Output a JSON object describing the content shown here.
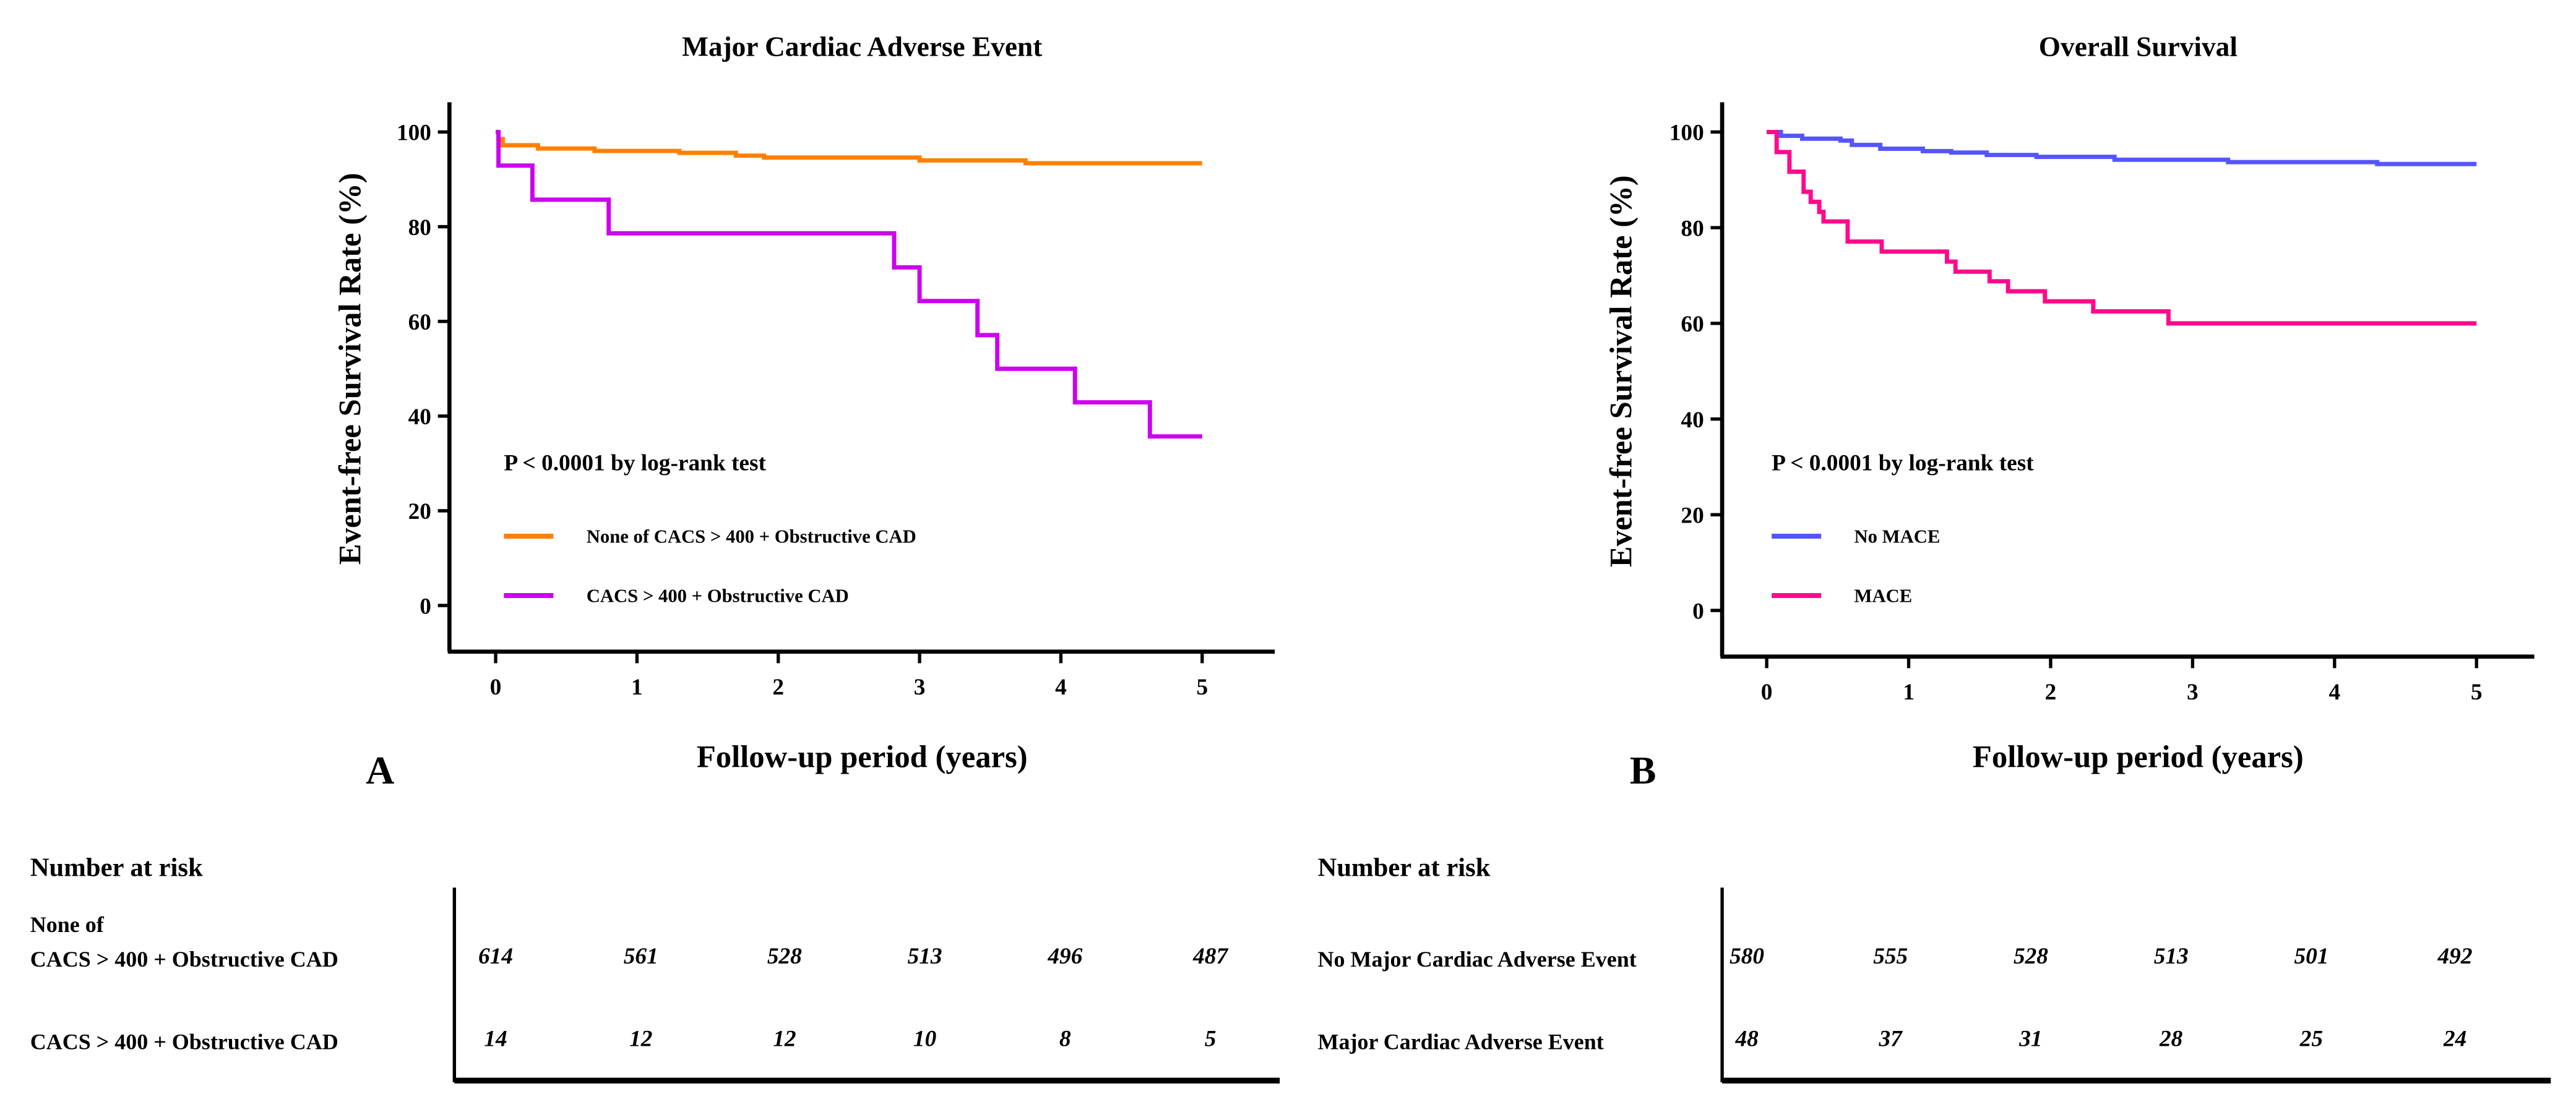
{
  "chart_data": [
    {
      "type": "line",
      "panel_label": "A",
      "title": "Major Cardiac Adverse Event",
      "xlabel": "Follow-up period (years)",
      "ylabel": "Event-free Survival Rate (%)",
      "xlim": [
        0,
        5
      ],
      "ylim": [
        -10,
        105
      ],
      "xticks": [
        "0",
        "1",
        "2",
        "3",
        "4",
        "5"
      ],
      "yticks": [
        "0",
        "20",
        "40",
        "60",
        "80",
        "100"
      ],
      "grid": false,
      "annotation": "P < 0.0001 by log-rank test",
      "legend_placement": "bottom-left",
      "series": [
        {
          "name": "None of  CACS > 400 + Obstructive CAD",
          "color": "#FF8000",
          "step": true,
          "x": [
            0,
            0.02,
            0.05,
            0.3,
            0.7,
            1.3,
            1.7,
            1.9,
            3.0,
            3.75,
            5
          ],
          "y": [
            100,
            98.5,
            97.2,
            96.5,
            96.0,
            95.6,
            95.0,
            94.6,
            94.0,
            93.4,
            93.4
          ]
        },
        {
          "name": "CACS > 400 + Obstructive CAD",
          "color": "#CC00EE",
          "step": true,
          "x": [
            0,
            0.02,
            0.26,
            0.8,
            2.82,
            3.0,
            3.41,
            3.55,
            4.1,
            4.63,
            5
          ],
          "y": [
            100,
            92.9,
            85.7,
            78.6,
            71.4,
            64.3,
            57.1,
            50.0,
            42.9,
            35.7,
            35.7
          ]
        }
      ]
    },
    {
      "type": "line",
      "panel_label": "B",
      "title": "Overall Survival",
      "xlabel": "Follow-up period (years)",
      "ylabel": "Event-free Survival Rate (%)",
      "xlim": [
        0,
        5
      ],
      "ylim": [
        -10,
        105
      ],
      "xticks": [
        "0",
        "1",
        "2",
        "3",
        "4",
        "5"
      ],
      "yticks": [
        "0",
        "20",
        "40",
        "60",
        "80",
        "100"
      ],
      "grid": false,
      "annotation": "P < 0.0001 by log-rank test",
      "legend_placement": "bottom-left",
      "series": [
        {
          "name": "No MACE",
          "color": "#5555FF",
          "step": true,
          "x": [
            0,
            0.1,
            0.25,
            0.52,
            0.6,
            0.8,
            1.1,
            1.3,
            1.55,
            1.9,
            2.45,
            3.25,
            4.3,
            5
          ],
          "y": [
            100,
            99.2,
            98.6,
            98.2,
            97.3,
            96.5,
            96.0,
            95.7,
            95.2,
            94.8,
            94.2,
            93.7,
            93.3,
            93.3
          ]
        },
        {
          "name": "MACE",
          "color": "#FF0A8C",
          "step": true,
          "x": [
            0,
            0.07,
            0.16,
            0.26,
            0.31,
            0.37,
            0.4,
            0.57,
            0.81,
            1.27,
            1.33,
            1.57,
            1.7,
            1.96,
            2.3,
            2.83,
            5
          ],
          "y": [
            100,
            95.8,
            91.7,
            87.5,
            85.4,
            83.3,
            81.3,
            77.1,
            75.0,
            72.9,
            70.8,
            68.8,
            66.7,
            64.6,
            62.5,
            60.0,
            60.0
          ]
        }
      ]
    }
  ],
  "risk_tables": [
    {
      "heading": "Number at risk",
      "rows": [
        {
          "label_lines": [
            "None of",
            "CACS > 400 + Obstructive CAD"
          ],
          "values": [
            "614",
            "561",
            "528",
            "513",
            "496",
            "487"
          ]
        },
        {
          "label_lines": [
            "CACS > 400 + Obstructive CAD"
          ],
          "values": [
            "14",
            "12",
            "12",
            "10",
            "8",
            "5"
          ]
        }
      ]
    },
    {
      "heading": "Number at risk",
      "rows": [
        {
          "label_lines": [
            "No Major Cardiac Adverse Event"
          ],
          "values": [
            "580",
            "555",
            "528",
            "513",
            "501",
            "492"
          ]
        },
        {
          "label_lines": [
            "Major Cardiac Adverse Event"
          ],
          "values": [
            "48",
            "37",
            "31",
            "28",
            "25",
            "24"
          ]
        }
      ]
    }
  ]
}
